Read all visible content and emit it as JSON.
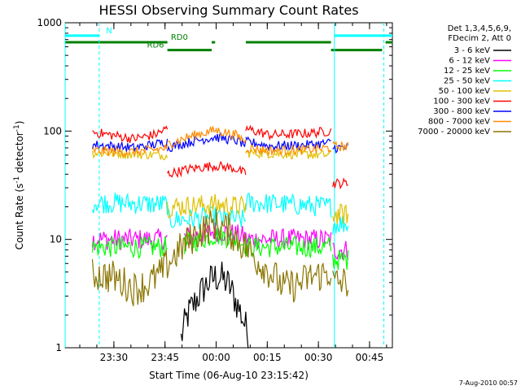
{
  "chart_data": {
    "type": "line",
    "title": "HESSI Observing Summary Count Rates",
    "xlabel": "Start Time (06-Aug-10 23:15:42)",
    "ylabel_main": "Count Rate (s",
    "ylabel_sup1": "-1",
    "ylabel_mid": " detector",
    "ylabel_sup2": "-1",
    "ylabel_end": ")",
    "y_scale": "log",
    "ylim": [
      1,
      1000
    ],
    "x_unit": "minutes since 23:15:42",
    "xlim": [
      0,
      96
    ],
    "x_ticks": [
      {
        "label": "23:30",
        "x": 14.3
      },
      {
        "label": "23:45",
        "x": 29.3
      },
      {
        "label": "00:00",
        "x": 44.3
      },
      {
        "label": "00:15",
        "x": 59.3
      },
      {
        "label": "00:30",
        "x": 74.3
      },
      {
        "label": "00:45",
        "x": 89.3
      }
    ],
    "y_ticks": [
      {
        "label": "1",
        "y": 1
      },
      {
        "label": "10",
        "y": 10
      },
      {
        "label": "100",
        "y": 100
      },
      {
        "label": "1000",
        "y": 1000
      }
    ],
    "legend_header": [
      "Det 1,3,4,5,6,9,",
      "FDecim 2, Att 0"
    ],
    "legend_position": "right",
    "series": [
      {
        "name": "3 - 6 keV",
        "color": "#000000",
        "segments": [
          [
            [
              34,
              1.2
            ],
            [
              36,
              2.0
            ],
            [
              38,
              2.6
            ],
            [
              40,
              3.3
            ],
            [
              42,
              4.0
            ],
            [
              44,
              4.5
            ],
            [
              46,
              4.4
            ],
            [
              48,
              3.8
            ],
            [
              50,
              2.7
            ],
            [
              52,
              1.9
            ],
            [
              54,
              1.2
            ]
          ]
        ]
      },
      {
        "name": "6 - 12 keV",
        "color": "#ff00ff",
        "segments": [
          [
            [
              8,
              10.0
            ],
            [
              30,
              10.0
            ]
          ],
          [
            [
              35,
              10.5
            ],
            [
              40,
              11.0
            ],
            [
              44,
              12.0
            ],
            [
              48,
              11.5
            ],
            [
              53,
              10.5
            ]
          ],
          [
            [
              53,
              10.0
            ],
            [
              78,
              10.0
            ]
          ],
          [
            [
              78.5,
              8.0
            ],
            [
              83,
              8.0
            ]
          ]
        ]
      },
      {
        "name": "12 - 25 keV",
        "color": "#00ff00",
        "segments": [
          [
            [
              8,
              8.5
            ],
            [
              30,
              8.5
            ]
          ],
          [
            [
              35,
              9.0
            ],
            [
              40,
              10.0
            ],
            [
              44,
              11.0
            ],
            [
              48,
              10.5
            ],
            [
              53,
              9.0
            ]
          ],
          [
            [
              53,
              8.5
            ],
            [
              78,
              8.5
            ]
          ],
          [
            [
              78.5,
              6.5
            ],
            [
              83,
              6.5
            ]
          ]
        ]
      },
      {
        "name": "25 - 50 keV",
        "color": "#00ffff",
        "segments": [
          [
            [
              8,
              22.0
            ],
            [
              30,
              21.0
            ]
          ],
          [
            [
              30,
              15.0
            ],
            [
              44,
              16.0
            ],
            [
              53,
              15.0
            ]
          ],
          [
            [
              53,
              22.0
            ],
            [
              78,
              20.0
            ]
          ],
          [
            [
              78.5,
              14.0
            ],
            [
              83,
              14.0
            ]
          ]
        ]
      },
      {
        "name": "50 - 100 keV",
        "color": "#e0c000",
        "segments": [
          [
            [
              8,
              63.0
            ],
            [
              30,
              60.0
            ]
          ],
          [
            [
              30,
              20.0
            ],
            [
              44,
              21.0
            ],
            [
              53,
              20.0
            ]
          ],
          [
            [
              53,
              63.0
            ],
            [
              78,
              60.0
            ]
          ],
          [
            [
              78.5,
              17.0
            ],
            [
              83,
              17.0
            ]
          ]
        ]
      },
      {
        "name": "100 - 300 keV",
        "color": "#ff0000",
        "segments": [
          [
            [
              8,
              98.0
            ],
            [
              20,
              85.0
            ],
            [
              26,
              92.0
            ],
            [
              30,
              105.0
            ]
          ],
          [
            [
              30,
              40.0
            ],
            [
              37,
              45.0
            ],
            [
              44,
              48.0
            ],
            [
              50,
              45.0
            ],
            [
              53,
              40.0
            ]
          ],
          [
            [
              53,
              105.0
            ],
            [
              60,
              92.0
            ],
            [
              70,
              95.0
            ],
            [
              78,
              100.0
            ]
          ],
          [
            [
              78.5,
              33.0
            ],
            [
              83,
              33.0
            ]
          ]
        ]
      },
      {
        "name": "300 - 800 keV",
        "color": "#0000ff",
        "segments": [
          [
            [
              8,
              75.0
            ],
            [
              20,
              70.0
            ],
            [
              26,
              75.0
            ],
            [
              30,
              80.0
            ]
          ],
          [
            [
              30,
              70.0
            ],
            [
              37,
              80.0
            ],
            [
              44,
              88.0
            ],
            [
              50,
              82.0
            ],
            [
              53,
              75.0
            ]
          ],
          [
            [
              53,
              80.0
            ],
            [
              60,
              73.0
            ],
            [
              70,
              74.0
            ],
            [
              78,
              78.0
            ]
          ],
          [
            [
              78.5,
              70.0
            ],
            [
              83,
              70.0
            ]
          ]
        ]
      },
      {
        "name": "800 - 7000 keV",
        "color": "#ff8c00",
        "segments": [
          [
            [
              8,
              66.0
            ],
            [
              20,
              64.0
            ],
            [
              26,
              67.0
            ],
            [
              30,
              70.0
            ]
          ],
          [
            [
              30,
              75.0
            ],
            [
              37,
              90.0
            ],
            [
              44,
              102.0
            ],
            [
              50,
              92.0
            ],
            [
              53,
              80.0
            ]
          ],
          [
            [
              53,
              70.0
            ],
            [
              60,
              66.0
            ],
            [
              70,
              67.0
            ],
            [
              78,
              70.0
            ]
          ],
          [
            [
              78.5,
              72.0
            ],
            [
              83,
              72.0
            ]
          ]
        ]
      },
      {
        "name": "7000 - 20000 keV",
        "color": "#8b7500",
        "segments": [
          [
            [
              8,
              4.8
            ],
            [
              14,
              4.5
            ],
            [
              20,
              3.5
            ],
            [
              24,
              3.8
            ],
            [
              28,
              4.8
            ],
            [
              32,
              7.0
            ],
            [
              36,
              9.5
            ],
            [
              40,
              12.0
            ],
            [
              44,
              14.0
            ],
            [
              48,
              12.0
            ],
            [
              52,
              9.0
            ],
            [
              56,
              6.5
            ],
            [
              60,
              5.0
            ],
            [
              64,
              3.6
            ],
            [
              68,
              3.8
            ],
            [
              72,
              4.5
            ],
            [
              76,
              4.8
            ],
            [
              78,
              5.0
            ]
          ],
          [
            [
              78.5,
              4.0
            ],
            [
              83,
              4.0
            ]
          ]
        ]
      }
    ],
    "state_bars": [
      {
        "label": "N",
        "color": "#00ffff",
        "y": 760,
        "segments": [
          [
            0,
            10
          ],
          [
            79,
            96
          ]
        ],
        "label_x": 12
      },
      {
        "label": "RD0",
        "color": "#008000",
        "y": 660,
        "segments": [
          [
            0,
            30
          ],
          [
            43,
            44
          ],
          [
            53,
            78
          ],
          [
            94,
            96
          ]
        ],
        "label_x": 31
      },
      {
        "label": "RD6",
        "color": "#008000",
        "y": 560,
        "segments": [
          [
            30,
            43
          ],
          [
            78,
            93
          ]
        ],
        "label_x": 24
      }
    ],
    "vlines": [
      {
        "x": 0,
        "color": "#00ffff",
        "style": "solid"
      },
      {
        "x": 10,
        "color": "#00ffff",
        "style": "dashed"
      },
      {
        "x": 79,
        "color": "#00ffff",
        "style": "solid"
      },
      {
        "x": 93.5,
        "color": "#00ffff",
        "style": "dashed"
      }
    ],
    "timestamp": "7-Aug-2010 00:57"
  }
}
